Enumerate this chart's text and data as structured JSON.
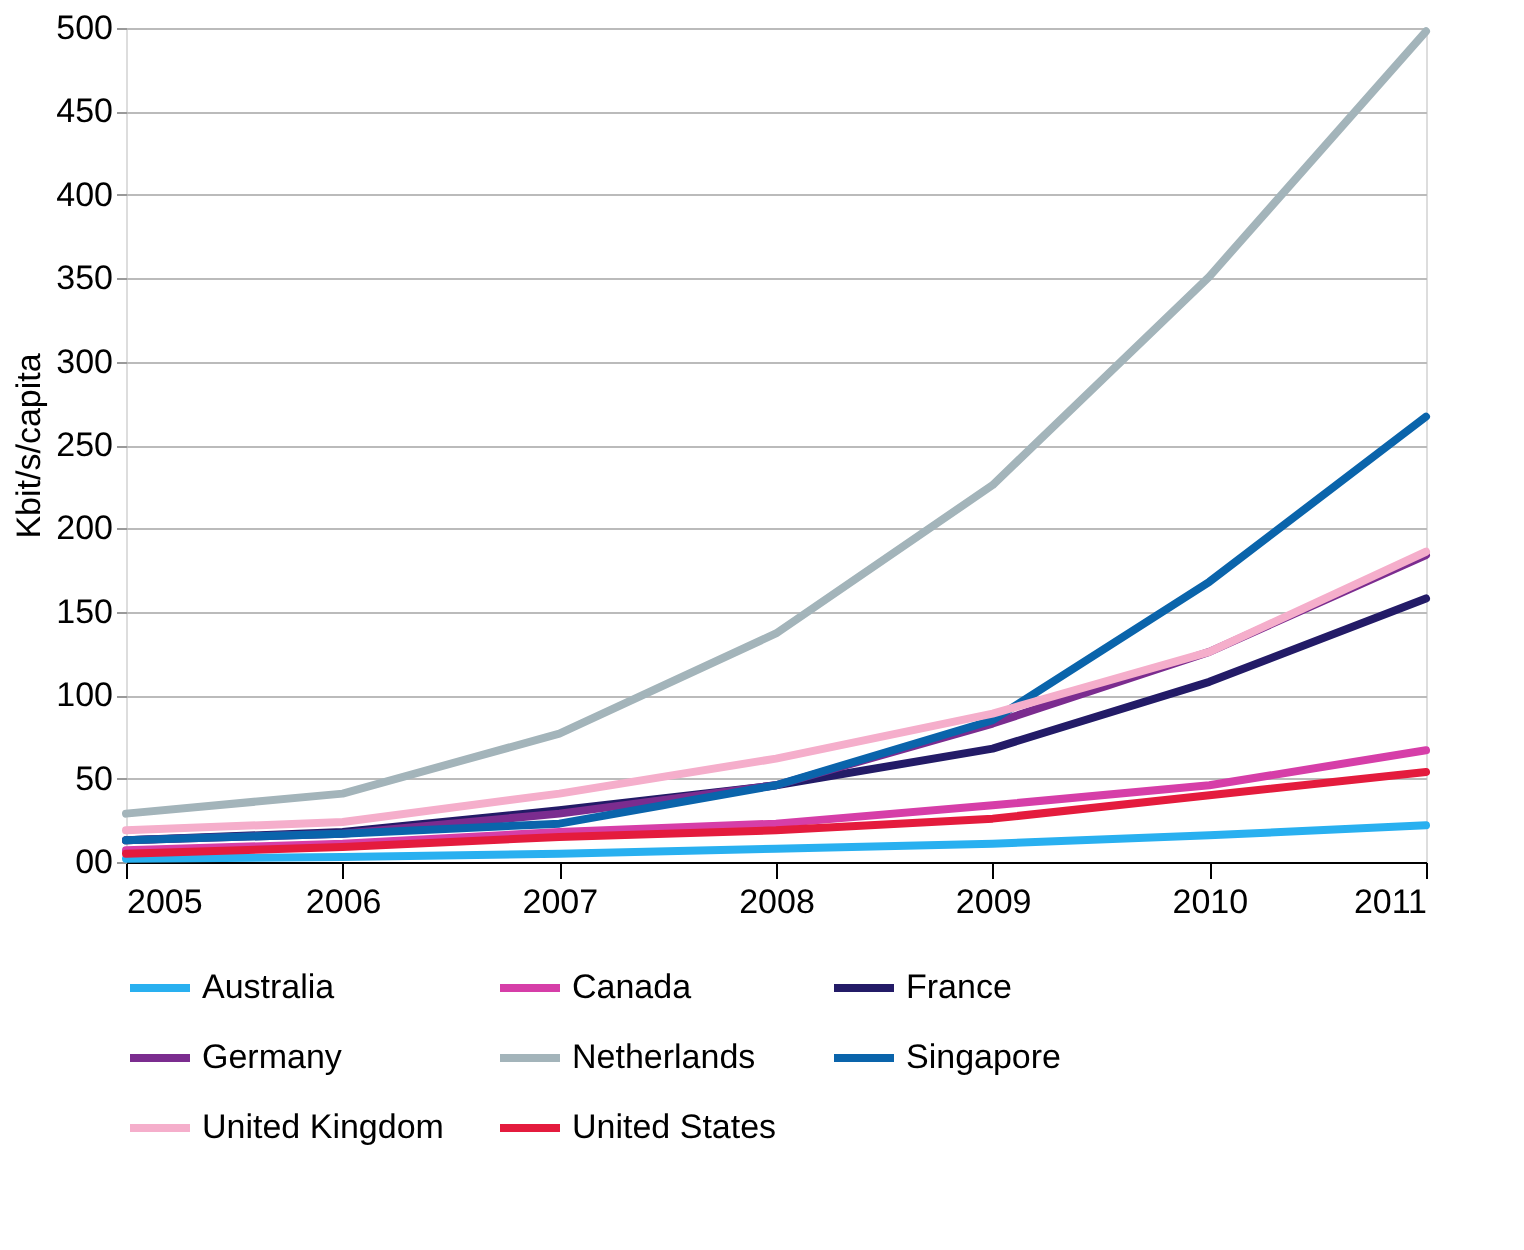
{
  "chart_data": {
    "type": "line",
    "ylabel": "Kbit/s/capita",
    "x": [
      2005,
      2006,
      2007,
      2008,
      2009,
      2010,
      2011
    ],
    "xlim": [
      2005,
      2011
    ],
    "xticks": [
      2005,
      2006,
      2007,
      2008,
      2009,
      2010,
      2011
    ],
    "ylim": [
      0,
      500
    ],
    "yticks": [
      {
        "value": 0,
        "label": "00"
      },
      50,
      100,
      150,
      200,
      250,
      300,
      350,
      400,
      450,
      500
    ],
    "grid": "y",
    "legend": "bottom",
    "marker": "none",
    "line_style": "solid",
    "series": [
      {
        "name": "Australia",
        "color": "#29b0f0",
        "values": [
          2,
          3,
          5,
          8,
          11,
          16,
          22
        ]
      },
      {
        "name": "Canada",
        "color": "#d63ea8",
        "values": [
          7,
          11,
          18,
          23,
          34,
          46,
          67
        ]
      },
      {
        "name": "France",
        "color": "#231b67",
        "values": [
          13,
          18,
          31,
          46,
          68,
          108,
          158
        ]
      },
      {
        "name": "Germany",
        "color": "#7b2c8f",
        "values": [
          13,
          17,
          29,
          46,
          83,
          126,
          184
        ]
      },
      {
        "name": "Netherlands",
        "color": "#a3b4ba",
        "values": [
          29,
          41,
          77,
          137,
          226,
          351,
          498
        ]
      },
      {
        "name": "Singapore",
        "color": "#0a64ab",
        "values": [
          13,
          17,
          23,
          46,
          85,
          168,
          267
        ]
      },
      {
        "name": "United Kingdom",
        "color": "#f5aecb",
        "values": [
          19,
          24,
          41,
          62,
          89,
          126,
          186
        ]
      },
      {
        "name": "United States",
        "color": "#e41b3d",
        "values": [
          5,
          9,
          15,
          19,
          26,
          40,
          54
        ]
      }
    ]
  }
}
